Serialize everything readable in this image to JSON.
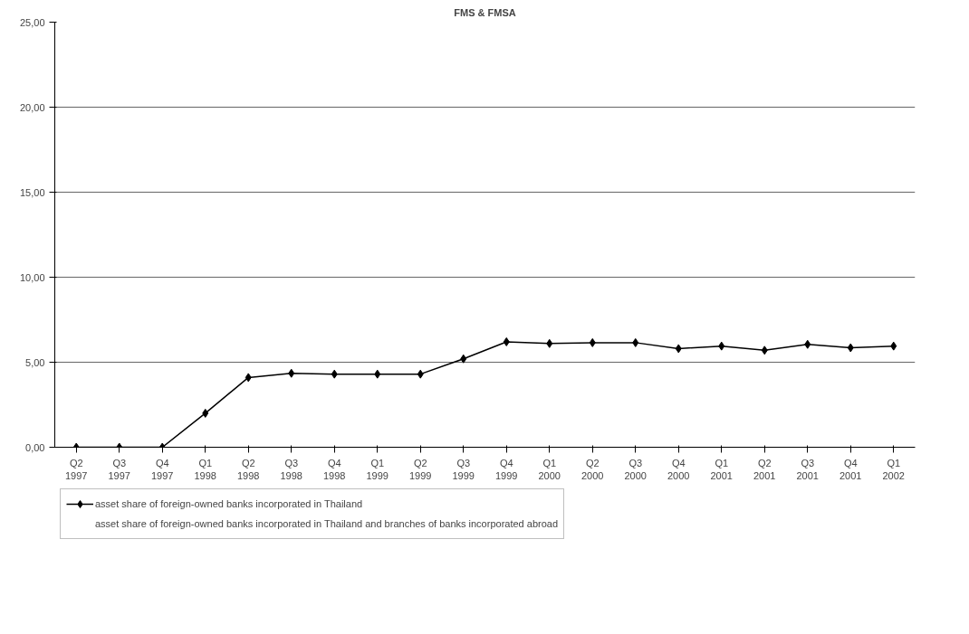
{
  "chart_data": {
    "type": "line",
    "title": "FMS & FMSA",
    "categories": [
      "Q2\n1997",
      "Q3\n1997",
      "Q4\n1997",
      "Q1\n1998",
      "Q2\n1998",
      "Q3\n1998",
      "Q4\n1998",
      "Q1\n1999",
      "Q2\n1999",
      "Q3\n1999",
      "Q4\n1999",
      "Q1\n2000",
      "Q2\n2000",
      "Q3\n2000",
      "Q4\n2000",
      "Q1\n2001",
      "Q2\n2001",
      "Q3\n2001",
      "Q4\n2001",
      "Q1\n2002"
    ],
    "series": [
      {
        "name": "asset share of foreign-owned banks incorporated in Thailand",
        "color": "#000000",
        "values": [
          0,
          0,
          0,
          2.0,
          4.1,
          4.35,
          4.3,
          4.3,
          4.3,
          5.2,
          6.2,
          6.1,
          6.15,
          6.15,
          5.8,
          5.95,
          5.7,
          6.05,
          5.85,
          5.95
        ]
      },
      {
        "name": "asset share of foreign-owned banks incorporated in Thailand and branches of banks incorporated abroad",
        "values": [
          null,
          null,
          null,
          null,
          null,
          null,
          null,
          null,
          null,
          null,
          null,
          null,
          null,
          null,
          null,
          null,
          null,
          null,
          null,
          null
        ]
      }
    ],
    "ylim": [
      0,
      25
    ],
    "yticks": [
      {
        "value": 0,
        "label": "0,00"
      },
      {
        "value": 5,
        "label": "5,00"
      },
      {
        "value": 10,
        "label": "10,00"
      },
      {
        "value": 15,
        "label": "15,00"
      },
      {
        "value": 20,
        "label": "20,00"
      },
      {
        "value": 25,
        "label": "25,00"
      }
    ],
    "grid": "y",
    "legend": "bottom",
    "marker": "diamond",
    "line_style": "solid"
  }
}
